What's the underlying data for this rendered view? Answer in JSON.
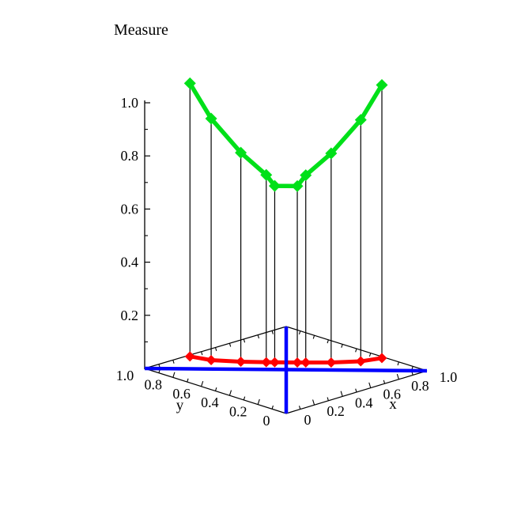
{
  "chart_data": {
    "type": "line",
    "subtype": "3d-line-plot",
    "title": "Measure",
    "axes": {
      "x": {
        "label": "x",
        "range": [
          0,
          1
        ],
        "tick_values": [
          0,
          0.2,
          0.4,
          0.6,
          0.8,
          1.0
        ],
        "tick_labels": [
          "0",
          "0.2",
          "0.4",
          "0.6",
          "0.8",
          "1.0"
        ]
      },
      "y": {
        "label": "y",
        "range": [
          1,
          0
        ],
        "tick_values": [
          1.0,
          0.8,
          0.6,
          0.4,
          0.2,
          0
        ],
        "tick_labels": [
          "1.0",
          "0.8",
          "0.6",
          "0.4",
          "0.2",
          "0"
        ]
      },
      "z": {
        "label": "Measure",
        "range": [
          0,
          1.05
        ],
        "tick_values": [
          0.2,
          0.4,
          0.6,
          0.8,
          1.0
        ],
        "tick_labels": [
          "0.2",
          "0.4",
          "0.6",
          "0.8",
          "1.0"
        ],
        "minor_tick_values": [
          0.1,
          0.3,
          0.5,
          0.7,
          0.9
        ]
      }
    },
    "colors": {
      "measure_series": "#00E019",
      "base_series": "#FF0000",
      "diagonals": "#0000FF",
      "axis": "#000000",
      "drop_line": "#000000",
      "text": "#000000"
    },
    "legend": null,
    "grid": false,
    "drop_lines": true,
    "base_plane_diagonals": true,
    "series": [
      {
        "id": "measure-curve",
        "color_key": "measure_series",
        "marker": "diamond",
        "points": [
          {
            "x": 0.16,
            "y": 0.84,
            "z": 1.075
          },
          {
            "x": 0.235,
            "y": 0.765,
            "z": 0.943
          },
          {
            "x": 0.34,
            "y": 0.66,
            "z": 0.816
          },
          {
            "x": 0.43,
            "y": 0.57,
            "z": 0.733
          },
          {
            "x": 0.46,
            "y": 0.54,
            "z": 0.692
          },
          {
            "x": 0.54,
            "y": 0.46,
            "z": 0.692
          },
          {
            "x": 0.57,
            "y": 0.43,
            "z": 0.733
          },
          {
            "x": 0.66,
            "y": 0.34,
            "z": 0.816
          },
          {
            "x": 0.765,
            "y": 0.235,
            "z": 0.943
          },
          {
            "x": 0.84,
            "y": 0.16,
            "z": 1.075
          }
        ]
      },
      {
        "id": "base-curve",
        "color_key": "base_series",
        "marker": "diamond",
        "points": [
          {
            "x": 0.16,
            "y": 0.84,
            "z": 0.047
          },
          {
            "x": 0.235,
            "y": 0.765,
            "z": 0.034
          },
          {
            "x": 0.34,
            "y": 0.66,
            "z": 0.029
          },
          {
            "x": 0.43,
            "y": 0.57,
            "z": 0.028
          },
          {
            "x": 0.46,
            "y": 0.54,
            "z": 0.028
          },
          {
            "x": 0.54,
            "y": 0.46,
            "z": 0.028
          },
          {
            "x": 0.57,
            "y": 0.43,
            "z": 0.028
          },
          {
            "x": 0.66,
            "y": 0.34,
            "z": 0.029
          },
          {
            "x": 0.765,
            "y": 0.235,
            "z": 0.034
          },
          {
            "x": 0.84,
            "y": 0.16,
            "z": 0.047
          }
        ]
      }
    ]
  }
}
